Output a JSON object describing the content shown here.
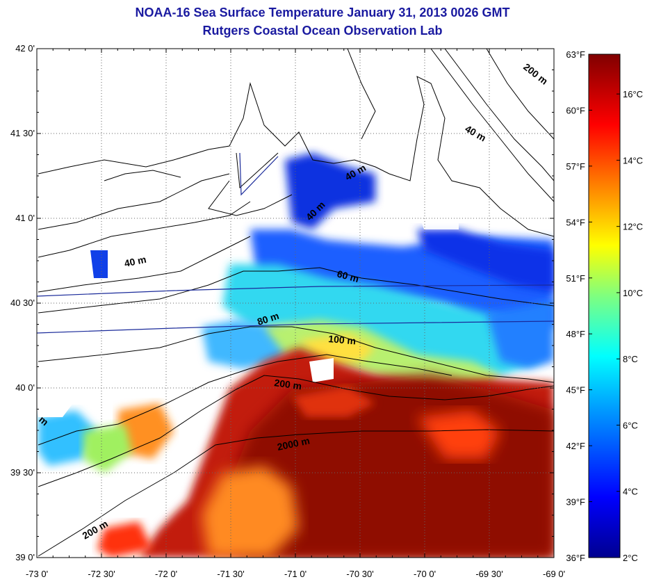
{
  "title": "NOAA-16 Sea Surface Temperature January 31, 2013 0026 GMT",
  "subtitle": "Rutgers Coastal Ocean Observation Lab",
  "map": {
    "lat_ticks": [
      "42 0'",
      "41 30'",
      "41 0'",
      "40 30'",
      "40 0'",
      "39 30'",
      "39 0'"
    ],
    "lon_ticks": [
      "-73 0'",
      "-72 30'",
      "-72 0'",
      "-71 30'",
      "-71 0'",
      "-70 30'",
      "-70 0'",
      "-69 30'",
      "-69 0'"
    ],
    "lon_range": [
      -73,
      -69
    ],
    "lat_range": [
      39,
      42
    ]
  },
  "isobaths": {
    "label_40_east": "40 m",
    "label_40_mid": "40 m",
    "label_40_west": "40 m",
    "label_60": "60 m",
    "label_80": "80 m",
    "label_100": "100 m",
    "label_200_center": "200 m",
    "label_200_west": "200 m",
    "label_200_ne": "200 m",
    "label_2000": "2000 m",
    "label_edge": "m"
  },
  "colorbar": {
    "fahrenheit": [
      "63°F",
      "60°F",
      "57°F",
      "54°F",
      "51°F",
      "48°F",
      "45°F",
      "42°F",
      "39°F",
      "36°F"
    ],
    "celsius": [
      "16°C",
      "14°C",
      "12°C",
      "10°C",
      "8°C",
      "6°C",
      "4°C",
      "2°C"
    ],
    "range_c": [
      2,
      17.2
    ],
    "colors": [
      "#00008f",
      "#0000ff",
      "#00a0ff",
      "#00ffff",
      "#7fff7f",
      "#ffff00",
      "#ff8000",
      "#ff0000",
      "#800000"
    ]
  }
}
